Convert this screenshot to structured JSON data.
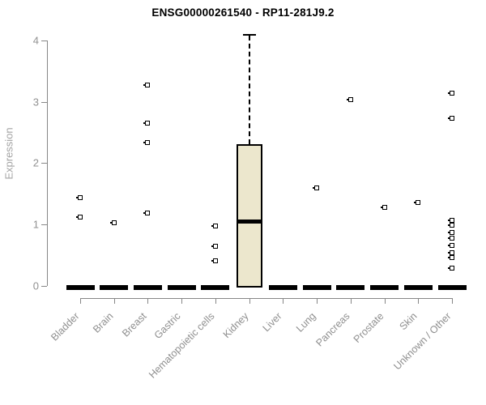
{
  "title": "ENSG00000261540 - RP11-281J9.2",
  "chart_data": {
    "type": "boxplot",
    "title": "ENSG00000261540 - RP11-281J9.2",
    "xlabel": "",
    "ylabel": "Expression",
    "ylim": [
      0,
      4.2
    ],
    "yticks": [
      0,
      1,
      2,
      3,
      4
    ],
    "grid": false,
    "legend": "none",
    "box_fill_color": "#ece7cd",
    "box_line_color": "#000000",
    "axis_color": "#878787",
    "label_color": "#8f8f8f",
    "categories": [
      "Bladder",
      "Brain",
      "Breast",
      "Gastric",
      "Hematopoietic cells",
      "Kidney",
      "Liver",
      "Lung",
      "Pancreas",
      "Prostate",
      "Skin",
      "Unknown / Other"
    ],
    "series": [
      {
        "category": "Bladder",
        "stats": {
          "whisker_low": 0,
          "q1": 0,
          "median": 0,
          "q3": 0,
          "whisker_high": 0
        },
        "outliers": [
          1.43,
          1.12
        ]
      },
      {
        "category": "Brain",
        "stats": {
          "whisker_low": 0,
          "q1": 0,
          "median": 0,
          "q3": 0,
          "whisker_high": 0
        },
        "outliers": [
          1.02
        ]
      },
      {
        "category": "Breast",
        "stats": {
          "whisker_low": 0,
          "q1": 0,
          "median": 0,
          "q3": 0,
          "whisker_high": 0
        },
        "outliers": [
          3.27,
          2.65,
          2.34,
          1.19
        ]
      },
      {
        "category": "Gastric",
        "stats": {
          "whisker_low": 0,
          "q1": 0,
          "median": 0,
          "q3": 0,
          "whisker_high": 0
        },
        "outliers": []
      },
      {
        "category": "Hematopoietic cells",
        "stats": {
          "whisker_low": 0,
          "q1": 0,
          "median": 0,
          "q3": 0,
          "whisker_high": 0
        },
        "outliers": [
          0.97,
          0.64,
          0.4
        ]
      },
      {
        "category": "Kidney",
        "stats": {
          "whisker_low": 0,
          "q1": 0,
          "median": 1.05,
          "q3": 2.31,
          "whisker_high": 4.08
        },
        "outliers": []
      },
      {
        "category": "Liver",
        "stats": {
          "whisker_low": 0,
          "q1": 0,
          "median": 0,
          "q3": 0,
          "whisker_high": 0
        },
        "outliers": []
      },
      {
        "category": "Lung",
        "stats": {
          "whisker_low": 0,
          "q1": 0,
          "median": 0,
          "q3": 0,
          "whisker_high": 0
        },
        "outliers": [
          1.6
        ]
      },
      {
        "category": "Pancreas",
        "stats": {
          "whisker_low": 0,
          "q1": 0,
          "median": 0,
          "q3": 0,
          "whisker_high": 0
        },
        "outliers": [
          3.03
        ]
      },
      {
        "category": "Prostate",
        "stats": {
          "whisker_low": 0,
          "q1": 0,
          "median": 0,
          "q3": 0,
          "whisker_high": 0
        },
        "outliers": [
          1.28
        ]
      },
      {
        "category": "Skin",
        "stats": {
          "whisker_low": 0,
          "q1": 0,
          "median": 0,
          "q3": 0,
          "whisker_high": 0
        },
        "outliers": [
          1.35
        ]
      },
      {
        "category": "Unknown / Other",
        "stats": {
          "whisker_low": 0,
          "q1": 0,
          "median": 0,
          "q3": 0,
          "whisker_high": 0
        },
        "outliers": [
          3.14,
          2.73,
          1.06,
          0.99,
          0.86,
          0.77,
          0.66,
          0.53,
          0.45,
          0.28
        ]
      }
    ]
  }
}
